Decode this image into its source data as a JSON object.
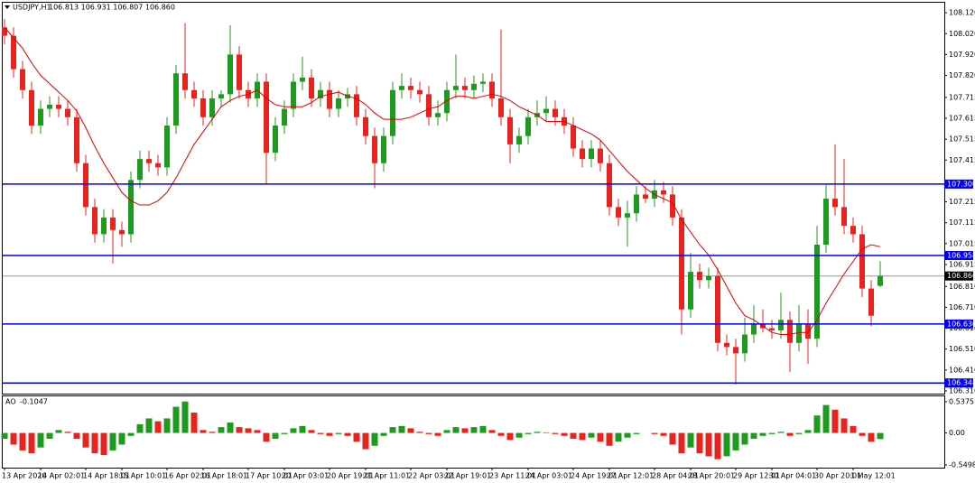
{
  "chart_data": {
    "type": "candlestick",
    "title": "USDJPY,H1",
    "quote": "106.813 106.931 106.807 106.860",
    "categories": [
      "13 Apr 2020",
      null,
      null,
      null,
      "14 Apr 02:01",
      null,
      null,
      null,
      null,
      "14 Apr 18:01",
      null,
      null,
      null,
      "15 Apr 10:01",
      null,
      null,
      null,
      null,
      "16 Apr 02:01",
      null,
      null,
      null,
      "16 Apr 18:01",
      null,
      null,
      null,
      null,
      "17 Apr 10:01",
      null,
      null,
      null,
      "20 Apr 03:01",
      null,
      null,
      null,
      null,
      "20 Apr 19:01",
      null,
      null,
      null,
      "21 Apr 11:01",
      null,
      null,
      null,
      null,
      "22 Apr 03:01",
      null,
      null,
      null,
      "22 Apr 19:01",
      null,
      null,
      null,
      null,
      "23 Apr 11:01",
      null,
      null,
      null,
      "24 Apr 03:01",
      null,
      null,
      null,
      null,
      "24 Apr 19:01",
      null,
      null,
      null,
      "27 Apr 12:01",
      null,
      null,
      null,
      null,
      "28 Apr 04:01",
      null,
      null,
      null,
      "28 Apr 20:01",
      null,
      null,
      null,
      null,
      "29 Apr 12:01",
      null,
      null,
      null,
      "30 Apr 04:01",
      null,
      null,
      null,
      null,
      "30 Apr 20:01",
      null,
      null,
      null,
      "1 May 12:01",
      null,
      null,
      null
    ],
    "open": [
      108.05,
      108.01,
      107.85,
      107.75,
      107.58,
      107.66,
      107.68,
      107.66,
      107.62,
      107.4,
      107.19,
      107.06,
      107.14,
      107.08,
      107.06,
      107.32,
      107.42,
      107.4,
      107.38,
      107.58,
      107.83,
      107.75,
      107.71,
      107.62,
      107.71,
      107.73,
      107.92,
      107.75,
      107.71,
      107.79,
      107.45,
      107.58,
      107.66,
      107.79,
      107.81,
      107.71,
      107.75,
      107.66,
      107.71,
      107.73,
      107.62,
      107.53,
      107.4,
      107.53,
      107.75,
      107.77,
      107.75,
      107.73,
      107.62,
      107.64,
      107.75,
      107.77,
      107.75,
      107.78,
      107.79,
      107.71,
      107.62,
      107.49,
      107.53,
      107.62,
      107.64,
      107.66,
      107.62,
      107.58,
      107.47,
      107.42,
      107.47,
      107.4,
      107.19,
      107.14,
      107.16,
      107.25,
      107.23,
      107.27,
      107.25,
      107.14,
      106.7,
      106.88,
      106.84,
      106.86,
      106.54,
      106.52,
      106.49,
      106.58,
      106.63,
      106.61,
      106.6,
      106.65,
      106.54,
      106.63,
      106.56,
      107.01,
      107.23,
      107.19,
      107.1,
      107.06,
      106.8,
      106.813
    ],
    "high": [
      108.09,
      108.05,
      107.89,
      107.79,
      107.7,
      107.72,
      107.72,
      107.7,
      107.66,
      107.44,
      107.23,
      107.18,
      107.18,
      107.12,
      107.36,
      107.46,
      107.46,
      107.44,
      107.62,
      107.87,
      108.07,
      107.79,
      107.75,
      107.75,
      107.75,
      108.06,
      107.96,
      107.79,
      107.83,
      107.83,
      107.62,
      107.7,
      107.83,
      107.91,
      107.85,
      107.79,
      107.79,
      107.75,
      107.76,
      107.77,
      107.66,
      107.57,
      107.57,
      107.79,
      107.83,
      107.81,
      107.79,
      107.77,
      107.7,
      107.79,
      107.92,
      107.81,
      107.82,
      107.83,
      107.83,
      108.04,
      107.66,
      107.57,
      107.66,
      107.7,
      107.72,
      107.7,
      107.66,
      107.62,
      107.51,
      107.51,
      107.51,
      107.44,
      107.23,
      107.22,
      107.29,
      107.29,
      107.32,
      107.31,
      107.29,
      107.18,
      106.97,
      106.92,
      106.9,
      106.9,
      106.58,
      106.56,
      106.66,
      106.72,
      106.7,
      106.65,
      106.78,
      106.69,
      106.72,
      106.7,
      107.1,
      107.3,
      107.49,
      107.42,
      107.14,
      107.1,
      106.84,
      106.931
    ],
    "low": [
      107.97,
      107.81,
      107.71,
      107.54,
      107.54,
      107.62,
      107.62,
      107.58,
      107.36,
      107.15,
      107.02,
      107.02,
      106.92,
      107.0,
      107.02,
      107.28,
      107.36,
      107.34,
      107.34,
      107.54,
      107.71,
      107.67,
      107.58,
      107.58,
      107.67,
      107.69,
      107.71,
      107.67,
      107.67,
      107.3,
      107.41,
      107.54,
      107.62,
      107.75,
      107.67,
      107.67,
      107.62,
      107.62,
      107.67,
      107.58,
      107.49,
      107.28,
      107.36,
      107.49,
      107.71,
      107.71,
      107.69,
      107.58,
      107.58,
      107.6,
      107.71,
      107.71,
      107.71,
      107.74,
      107.67,
      107.58,
      107.4,
      107.45,
      107.49,
      107.58,
      107.6,
      107.58,
      107.54,
      107.43,
      107.38,
      107.38,
      107.36,
      107.15,
      107.1,
      107.0,
      107.12,
      107.21,
      107.19,
      107.21,
      107.1,
      106.58,
      106.66,
      106.8,
      106.8,
      106.5,
      106.48,
      106.34,
      106.45,
      106.54,
      106.59,
      106.56,
      106.56,
      106.4,
      106.5,
      106.44,
      106.52,
      106.97,
      107.15,
      107.06,
      107.02,
      106.76,
      106.62,
      106.807
    ],
    "close": [
      108.01,
      107.85,
      107.75,
      107.58,
      107.66,
      107.68,
      107.66,
      107.62,
      107.4,
      107.19,
      107.06,
      107.14,
      107.08,
      107.06,
      107.32,
      107.42,
      107.4,
      107.38,
      107.58,
      107.83,
      107.75,
      107.71,
      107.62,
      107.71,
      107.73,
      107.92,
      107.75,
      107.71,
      107.79,
      107.45,
      107.58,
      107.66,
      107.79,
      107.81,
      107.71,
      107.75,
      107.66,
      107.71,
      107.73,
      107.62,
      107.53,
      107.4,
      107.53,
      107.75,
      107.77,
      107.75,
      107.73,
      107.62,
      107.64,
      107.75,
      107.77,
      107.75,
      107.78,
      107.79,
      107.71,
      107.62,
      107.49,
      107.53,
      107.62,
      107.64,
      107.66,
      107.62,
      107.58,
      107.47,
      107.42,
      107.47,
      107.4,
      107.19,
      107.14,
      107.16,
      107.25,
      107.23,
      107.27,
      107.25,
      107.14,
      106.7,
      106.88,
      106.84,
      106.86,
      106.54,
      106.52,
      106.49,
      106.58,
      106.63,
      106.61,
      106.6,
      106.65,
      106.54,
      106.63,
      106.56,
      107.01,
      107.23,
      107.19,
      107.1,
      107.06,
      106.8,
      106.67,
      106.86
    ],
    "up_color": "#1e9b1e",
    "down_color": "#e8221c",
    "ma": {
      "color": "#e00000",
      "values": [
        108.05,
        108.0,
        107.95,
        107.88,
        107.82,
        107.78,
        107.74,
        107.7,
        107.65,
        107.57,
        107.48,
        107.4,
        107.33,
        107.26,
        107.22,
        107.2,
        107.2,
        107.22,
        107.26,
        107.33,
        107.41,
        107.49,
        107.55,
        107.61,
        107.67,
        107.7,
        107.72,
        107.73,
        107.75,
        107.71,
        107.68,
        107.67,
        107.67,
        107.67,
        107.69,
        107.72,
        107.73,
        107.74,
        107.72,
        107.71,
        107.68,
        107.64,
        107.61,
        107.61,
        107.61,
        107.62,
        107.64,
        107.66,
        107.67,
        107.7,
        107.72,
        107.72,
        107.71,
        107.72,
        107.73,
        107.72,
        107.7,
        107.67,
        107.65,
        107.63,
        107.6,
        107.6,
        107.6,
        107.58,
        107.56,
        107.54,
        107.51,
        107.46,
        107.41,
        107.36,
        107.32,
        107.28,
        107.25,
        107.23,
        107.21,
        107.13,
        107.07,
        107.01,
        106.96,
        106.89,
        106.81,
        106.73,
        106.67,
        106.65,
        106.62,
        106.59,
        106.58,
        106.58,
        106.59,
        106.59,
        106.65,
        106.73,
        106.8,
        106.87,
        106.93,
        106.99,
        107.01,
        107.0
      ]
    },
    "ylim": [
      106.297,
      108.168
    ],
    "yticks": [
      {
        "value": 108.12,
        "label": "108.120"
      },
      {
        "value": 108.02,
        "label": "108.020"
      },
      {
        "value": 107.92,
        "label": "107.920"
      },
      {
        "value": 107.82,
        "label": "107.820"
      },
      107.715,
      107.615,
      107.515,
      107.415,
      107.215,
      107.115,
      107.015,
      106.915,
      {
        "value": 106.81,
        "label": "106.810"
      },
      {
        "value": 106.71,
        "label": "106.710"
      },
      {
        "value": 106.61,
        "label": "106.610"
      },
      {
        "value": 106.51,
        "label": "106.510"
      },
      {
        "value": 106.41,
        "label": "106.410"
      },
      {
        "value": 106.31,
        "label": "106.310"
      }
    ],
    "levels": [
      {
        "value": 107.3,
        "label": "107.300",
        "color": "#0000ee"
      },
      {
        "value": 106.958,
        "label": "106.958",
        "color": "#0000ee"
      },
      {
        "value": 106.63,
        "label": "106.630",
        "color": "#0000ee"
      },
      {
        "value": 106.348,
        "label": "106.348",
        "color": "#0000ee"
      }
    ],
    "current_price": {
      "value": 106.86,
      "label": "106.860",
      "color": "#999999"
    },
    "ao": {
      "name": "AO",
      "values": [
        -0.1,
        -0.2,
        -0.3,
        -0.35,
        -0.25,
        -0.1,
        0.05,
        0.02,
        -0.1,
        -0.25,
        -0.35,
        -0.38,
        -0.3,
        -0.2,
        -0.05,
        0.15,
        0.25,
        0.2,
        0.25,
        0.45,
        0.54,
        0.35,
        0.05,
        0.02,
        0.1,
        0.18,
        0.1,
        0.08,
        0.05,
        -0.15,
        -0.1,
        -0.02,
        0.08,
        0.12,
        0.05,
        -0.02,
        -0.05,
        -0.02,
        -0.05,
        -0.15,
        -0.28,
        -0.22,
        -0.05,
        0.1,
        0.12,
        0.08,
        0.02,
        -0.02,
        -0.05,
        0.05,
        0.1,
        0.08,
        0.1,
        0.12,
        0.05,
        -0.05,
        -0.12,
        -0.08,
        -0.02,
        0.02,
        0.01,
        -0.02,
        -0.05,
        -0.1,
        -0.12,
        -0.08,
        -0.15,
        -0.22,
        -0.15,
        -0.08,
        -0.02,
        0.0,
        -0.02,
        -0.05,
        -0.2,
        -0.35,
        -0.25,
        -0.35,
        -0.4,
        -0.45,
        -0.4,
        -0.3,
        -0.2,
        -0.1,
        -0.05,
        -0.02,
        0.02,
        -0.05,
        -0.02,
        0.05,
        0.3,
        0.48,
        0.4,
        0.25,
        0.12,
        -0.05,
        -0.15,
        -0.1047
      ],
      "ylim": [
        -0.596,
        0.629
      ],
      "yticks": [
        0.5375,
        {
          "value": 0,
          "label": "0.00"
        },
        -0.5498
      ]
    }
  }
}
